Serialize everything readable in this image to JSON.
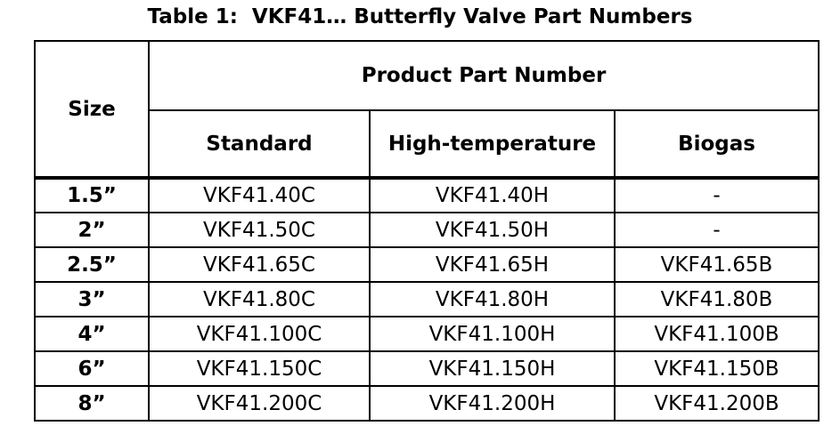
{
  "caption": "Table 1:  VKF41… Butterfly Valve Part Numbers",
  "table": {
    "size_header": "Size",
    "group_header": "Product Part Number",
    "columns": [
      "Standard",
      "High-temperature",
      "Biogas"
    ],
    "rows": [
      {
        "size": "1.5”",
        "standard": "VKF41.40C",
        "high_temperature": "VKF41.40H",
        "biogas": "-"
      },
      {
        "size": "2”",
        "standard": "VKF41.50C",
        "high_temperature": "VKF41.50H",
        "biogas": "-"
      },
      {
        "size": "2.5”",
        "standard": "VKF41.65C",
        "high_temperature": "VKF41.65H",
        "biogas": "VKF41.65B"
      },
      {
        "size": "3”",
        "standard": "VKF41.80C",
        "high_temperature": "VKF41.80H",
        "biogas": "VKF41.80B"
      },
      {
        "size": "4”",
        "standard": "VKF41.100C",
        "high_temperature": "VKF41.100H",
        "biogas": "VKF41.100B"
      },
      {
        "size": "6”",
        "standard": "VKF41.150C",
        "high_temperature": "VKF41.150H",
        "biogas": "VKF41.150B"
      },
      {
        "size": "8”",
        "standard": "VKF41.200C",
        "high_temperature": "VKF41.200H",
        "biogas": "VKF41.200B"
      }
    ]
  }
}
